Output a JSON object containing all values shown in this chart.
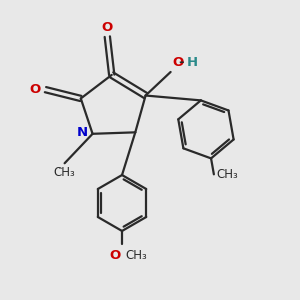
{
  "background_color": "#e8e8e8",
  "bond_color": "#2a2a2a",
  "N_color": "#0000cc",
  "O_color": "#cc0000",
  "OH_O_color": "#cc0000",
  "OH_H_color": "#2a8a8a",
  "figsize": [
    3.0,
    3.0
  ],
  "dpi": 100,
  "xlim": [
    0,
    10
  ],
  "ylim": [
    0,
    10
  ]
}
